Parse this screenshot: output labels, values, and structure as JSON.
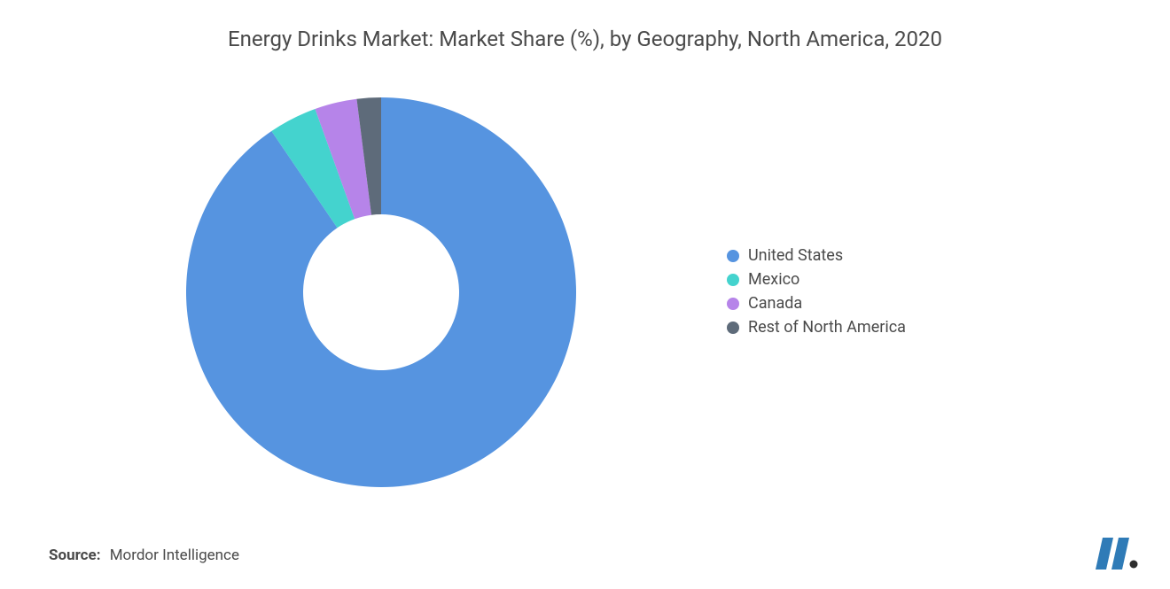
{
  "title": "Energy Drinks Market: Market Share (%), by Geography, North America, 2020",
  "source": {
    "label": "Source:",
    "text": "Mordor Intelligence"
  },
  "chart": {
    "type": "donut",
    "inner_radius_ratio": 0.4,
    "outer_radius": 220,
    "start_angle_deg": 90,
    "direction": "clockwise",
    "background_color": "#ffffff",
    "slices": [
      {
        "label": "United States",
        "value": 90.5,
        "color": "#5694e0"
      },
      {
        "label": "Mexico",
        "value": 4.0,
        "color": "#44d3ce"
      },
      {
        "label": "Canada",
        "value": 3.5,
        "color": "#b684e9"
      },
      {
        "label": "Rest of North America",
        "value": 2.0,
        "color": "#5e6b7a"
      }
    ],
    "title_fontsize": 24,
    "title_color": "#4a4a4a",
    "legend_fontsize": 18,
    "legend_text_color": "#4a4a4a",
    "legend_swatch_radius": 7
  },
  "logo": {
    "bar_color": "#2f7bb7",
    "dot_color": "#2d2d2d"
  }
}
